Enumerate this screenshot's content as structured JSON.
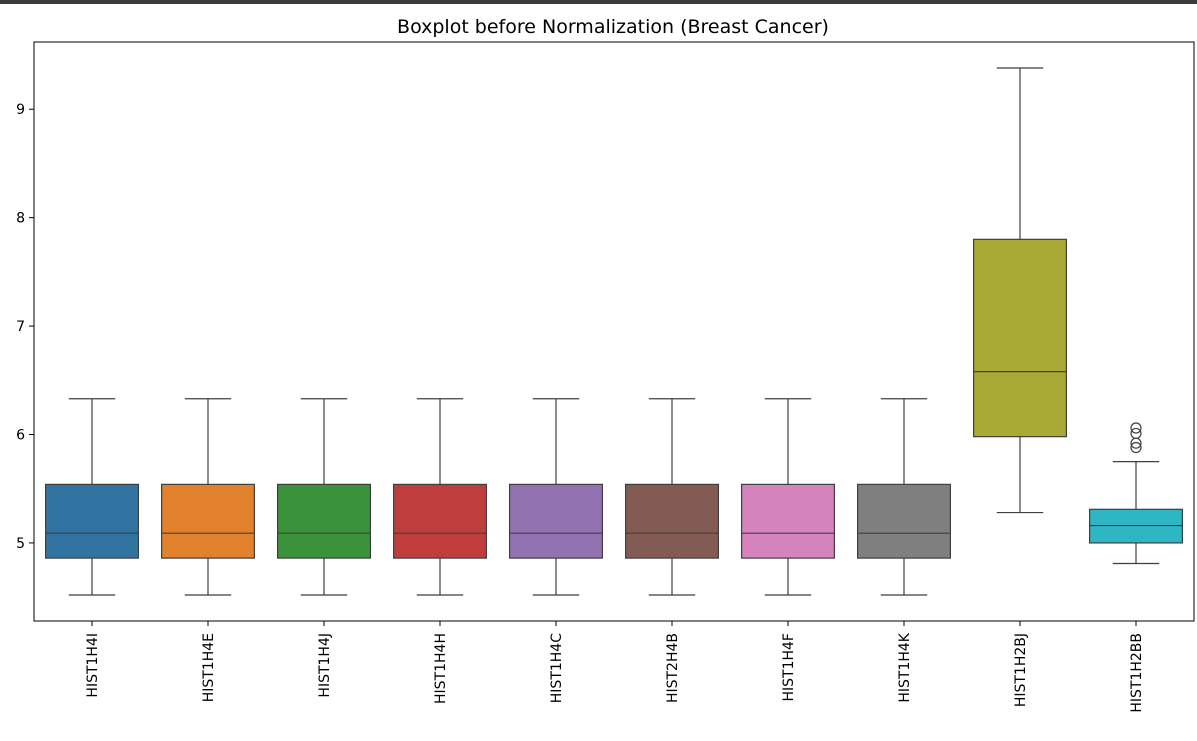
{
  "chart_data": {
    "type": "boxplot",
    "title": "Boxplot before Normalization (Breast Cancer)",
    "xlabel": "",
    "ylabel": "",
    "ylim": [
      4.28,
      9.62
    ],
    "yticks": [
      5,
      6,
      7,
      8,
      9
    ],
    "grid": false,
    "categories": [
      "HIST1H4I",
      "HIST1H4E",
      "HIST1H4J",
      "HIST1H4H",
      "HIST1H4C",
      "HIST2H4B",
      "HIST1H4F",
      "HIST1H4K",
      "HIST1H2BJ",
      "HIST1H2BB"
    ],
    "colors": [
      "#3274a1",
      "#e1812c",
      "#3a923a",
      "#c03d3e",
      "#9372b2",
      "#845b53",
      "#d684bd",
      "#7f7f7f",
      "#a9aa35",
      "#2eb6c5"
    ],
    "boxes": [
      {
        "whislo": 4.52,
        "q1": 4.86,
        "med": 5.09,
        "q3": 5.54,
        "whishi": 6.33,
        "fliers": []
      },
      {
        "whislo": 4.52,
        "q1": 4.86,
        "med": 5.09,
        "q3": 5.54,
        "whishi": 6.33,
        "fliers": []
      },
      {
        "whislo": 4.52,
        "q1": 4.86,
        "med": 5.09,
        "q3": 5.54,
        "whishi": 6.33,
        "fliers": []
      },
      {
        "whislo": 4.52,
        "q1": 4.86,
        "med": 5.09,
        "q3": 5.54,
        "whishi": 6.33,
        "fliers": []
      },
      {
        "whislo": 4.52,
        "q1": 4.86,
        "med": 5.09,
        "q3": 5.54,
        "whishi": 6.33,
        "fliers": []
      },
      {
        "whislo": 4.52,
        "q1": 4.86,
        "med": 5.09,
        "q3": 5.54,
        "whishi": 6.33,
        "fliers": []
      },
      {
        "whislo": 4.52,
        "q1": 4.86,
        "med": 5.09,
        "q3": 5.54,
        "whishi": 6.33,
        "fliers": []
      },
      {
        "whislo": 4.52,
        "q1": 4.86,
        "med": 5.09,
        "q3": 5.54,
        "whishi": 6.33,
        "fliers": []
      },
      {
        "whislo": 5.28,
        "q1": 5.98,
        "med": 6.58,
        "q3": 7.8,
        "whishi": 9.38,
        "fliers": []
      },
      {
        "whislo": 4.81,
        "q1": 5.0,
        "med": 5.16,
        "q3": 5.31,
        "whishi": 5.75,
        "fliers": [
          5.88,
          5.92,
          6.01,
          6.06
        ]
      }
    ]
  }
}
